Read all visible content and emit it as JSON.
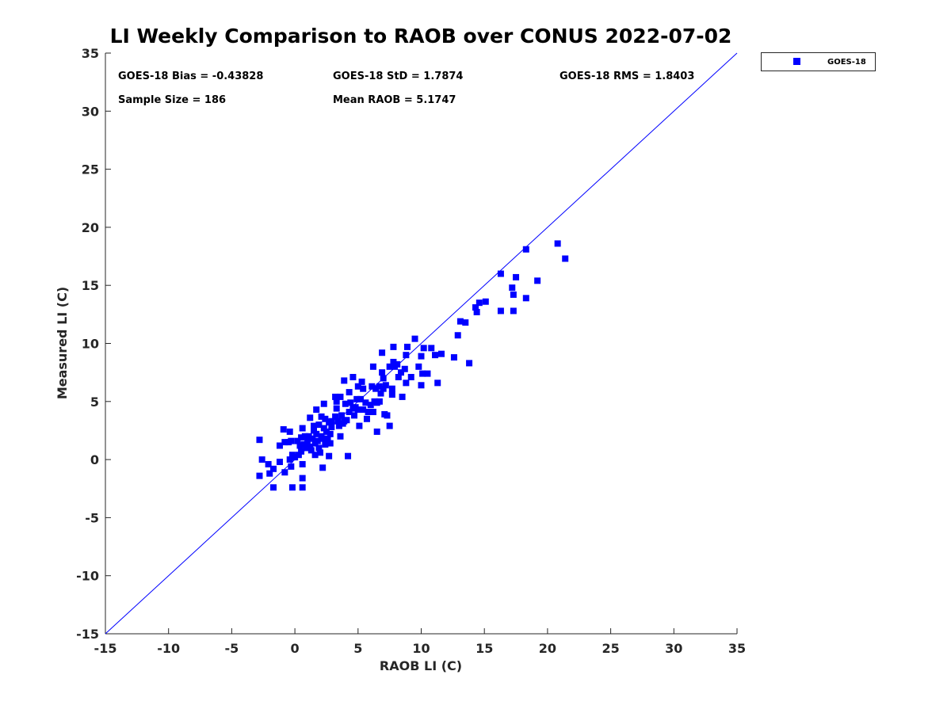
{
  "chart_data": {
    "type": "scatter",
    "title": "LI Weekly Comparison to RAOB over CONUS 2022-07-02",
    "xlabel": "RAOB LI (C)",
    "ylabel": "Measured LI (C)",
    "xlim": [
      -15,
      35
    ],
    "ylim": [
      -15,
      35
    ],
    "xticks": [
      -15,
      -10,
      -5,
      0,
      5,
      10,
      15,
      20,
      25,
      30,
      35
    ],
    "yticks": [
      -15,
      -10,
      -5,
      0,
      5,
      10,
      15,
      20,
      25,
      30,
      35
    ],
    "grid": false,
    "legend_position": "outside-top-right",
    "reference_line": {
      "name": "1:1 line",
      "color": "#0000ff"
    },
    "stats": {
      "bias": "GOES-18 Bias = -0.43828",
      "std": "GOES-18 StD = 1.7874",
      "rms": "GOES-18 RMS = 1.8403",
      "sample_size": "Sample Size = 186",
      "mean_raob": "Mean RAOB = 5.1747"
    },
    "series": [
      {
        "name": "GOES-18",
        "color": "#0000ff",
        "marker": "square",
        "points": [
          [
            -2.8,
            1.7
          ],
          [
            -2.6,
            0.0
          ],
          [
            -2.8,
            -1.4
          ],
          [
            -2.1,
            -0.4
          ],
          [
            -2.0,
            -1.2
          ],
          [
            -1.7,
            -0.8
          ],
          [
            -1.7,
            -2.4
          ],
          [
            -1.2,
            -0.2
          ],
          [
            -1.2,
            1.2
          ],
          [
            -0.9,
            2.6
          ],
          [
            -0.8,
            1.5
          ],
          [
            -0.8,
            -1.1
          ],
          [
            -0.5,
            1.5
          ],
          [
            -0.4,
            2.4
          ],
          [
            -0.3,
            1.6
          ],
          [
            -0.4,
            0.0
          ],
          [
            -0.3,
            -0.6
          ],
          [
            -0.2,
            0.4
          ],
          [
            -0.2,
            -2.4
          ],
          [
            0.0,
            0.2
          ],
          [
            0.2,
            1.6
          ],
          [
            0.3,
            0.4
          ],
          [
            0.4,
            1.2
          ],
          [
            0.5,
            1.9
          ],
          [
            0.5,
            0.7
          ],
          [
            0.6,
            -0.4
          ],
          [
            0.6,
            -1.6
          ],
          [
            0.6,
            -2.4
          ],
          [
            0.6,
            2.7
          ],
          [
            0.7,
            1.3
          ],
          [
            0.8,
            2.0
          ],
          [
            0.9,
            1.0
          ],
          [
            1.0,
            1.5
          ],
          [
            1.1,
            2.0
          ],
          [
            1.2,
            3.6
          ],
          [
            1.2,
            1.1
          ],
          [
            1.3,
            0.8
          ],
          [
            1.4,
            1.8
          ],
          [
            1.5,
            2.5
          ],
          [
            1.5,
            2.9
          ],
          [
            1.6,
            0.4
          ],
          [
            1.6,
            1.4
          ],
          [
            1.7,
            4.3
          ],
          [
            1.7,
            2.2
          ],
          [
            1.8,
            1.6
          ],
          [
            1.9,
            3.0
          ],
          [
            1.9,
            1.0
          ],
          [
            2.0,
            0.6
          ],
          [
            2.1,
            2.0
          ],
          [
            2.1,
            3.7
          ],
          [
            2.2,
            1.8
          ],
          [
            2.3,
            4.8
          ],
          [
            2.2,
            -0.7
          ],
          [
            2.3,
            2.7
          ],
          [
            2.4,
            1.3
          ],
          [
            2.4,
            3.5
          ],
          [
            2.5,
            2.4
          ],
          [
            2.6,
            1.8
          ],
          [
            2.7,
            3.2
          ],
          [
            2.7,
            0.3
          ],
          [
            2.8,
            1.4
          ],
          [
            2.8,
            2.2
          ],
          [
            2.9,
            3.3
          ],
          [
            2.9,
            2.8
          ],
          [
            3.2,
            5.4
          ],
          [
            3.2,
            3.7
          ],
          [
            3.3,
            5.0
          ],
          [
            3.3,
            4.4
          ],
          [
            3.4,
            3.3
          ],
          [
            3.5,
            2.9
          ],
          [
            3.6,
            5.4
          ],
          [
            3.7,
            3.8
          ],
          [
            3.6,
            2.0
          ],
          [
            3.8,
            3.1
          ],
          [
            3.9,
            6.8
          ],
          [
            3.9,
            3.3
          ],
          [
            4.0,
            4.8
          ],
          [
            4.1,
            3.4
          ],
          [
            4.2,
            0.3
          ],
          [
            4.3,
            5.8
          ],
          [
            4.3,
            4.1
          ],
          [
            4.4,
            4.9
          ],
          [
            4.6,
            7.1
          ],
          [
            4.6,
            4.4
          ],
          [
            4.7,
            3.8
          ],
          [
            4.8,
            4.5
          ],
          [
            4.9,
            5.2
          ],
          [
            5.0,
            6.3
          ],
          [
            5.0,
            4.3
          ],
          [
            5.1,
            2.9
          ],
          [
            5.2,
            5.2
          ],
          [
            5.3,
            6.7
          ],
          [
            5.4,
            6.1
          ],
          [
            5.4,
            4.3
          ],
          [
            5.6,
            4.9
          ],
          [
            5.7,
            3.5
          ],
          [
            5.8,
            4.1
          ],
          [
            6.0,
            4.7
          ],
          [
            6.1,
            6.3
          ],
          [
            6.2,
            4.1
          ],
          [
            6.2,
            8.0
          ],
          [
            6.3,
            5.0
          ],
          [
            6.4,
            6.1
          ],
          [
            6.5,
            2.4
          ],
          [
            6.5,
            4.9
          ],
          [
            6.7,
            6.3
          ],
          [
            6.7,
            5.0
          ],
          [
            6.8,
            5.7
          ],
          [
            6.9,
            7.5
          ],
          [
            6.9,
            9.2
          ],
          [
            7.0,
            7.0
          ],
          [
            7.0,
            6.1
          ],
          [
            7.1,
            3.9
          ],
          [
            7.2,
            6.4
          ],
          [
            7.3,
            3.8
          ],
          [
            7.5,
            8.0
          ],
          [
            7.5,
            2.9
          ],
          [
            7.7,
            6.1
          ],
          [
            7.7,
            5.6
          ],
          [
            7.8,
            8.4
          ],
          [
            7.8,
            9.7
          ],
          [
            7.9,
            8.0
          ],
          [
            8.1,
            8.2
          ],
          [
            8.2,
            7.1
          ],
          [
            8.4,
            7.5
          ],
          [
            8.5,
            5.4
          ],
          [
            8.7,
            7.8
          ],
          [
            8.8,
            6.6
          ],
          [
            8.8,
            9.0
          ],
          [
            8.9,
            9.7
          ],
          [
            9.2,
            7.1
          ],
          [
            9.5,
            10.4
          ],
          [
            9.8,
            8.0
          ],
          [
            10.0,
            8.9
          ],
          [
            10.0,
            6.4
          ],
          [
            10.2,
            9.6
          ],
          [
            10.1,
            7.4
          ],
          [
            10.5,
            7.4
          ],
          [
            10.8,
            9.6
          ],
          [
            11.1,
            9.0
          ],
          [
            11.3,
            6.6
          ],
          [
            11.6,
            9.1
          ],
          [
            12.6,
            8.8
          ],
          [
            12.9,
            10.7
          ],
          [
            13.1,
            11.9
          ],
          [
            13.5,
            11.8
          ],
          [
            13.8,
            8.3
          ],
          [
            14.3,
            13.1
          ],
          [
            14.4,
            12.7
          ],
          [
            14.6,
            13.5
          ],
          [
            15.1,
            13.6
          ],
          [
            16.3,
            16.0
          ],
          [
            16.3,
            12.8
          ],
          [
            17.2,
            14.8
          ],
          [
            17.3,
            14.2
          ],
          [
            17.3,
            12.8
          ],
          [
            17.5,
            15.7
          ],
          [
            18.3,
            18.1
          ],
          [
            18.3,
            13.9
          ],
          [
            19.2,
            15.4
          ],
          [
            20.8,
            18.6
          ],
          [
            21.4,
            17.3
          ]
        ]
      }
    ]
  }
}
